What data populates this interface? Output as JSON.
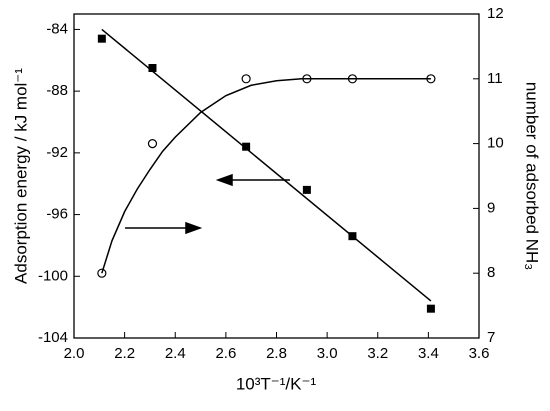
{
  "chart_data": {
    "type": "dual-axis-scatter",
    "xlabel": "10³T⁻¹/K⁻¹",
    "ylabel": "Adsorption energy / kJ mol⁻¹",
    "y2label": "number of adsorbed NH₃",
    "xlim": [
      2.0,
      3.6
    ],
    "xticks": [
      {
        "value": 2.0,
        "label": "2.0"
      },
      {
        "value": 2.2,
        "label": "2.2"
      },
      {
        "value": 2.4,
        "label": "2.4"
      },
      {
        "value": 2.6,
        "label": "2.6"
      },
      {
        "value": 2.8,
        "label": "2.8"
      },
      {
        "value": 3.0,
        "label": "3.0"
      },
      {
        "value": 3.2,
        "label": "3.2"
      },
      {
        "value": 3.4,
        "label": "3.4"
      },
      {
        "value": 3.6,
        "label": "3.6"
      }
    ],
    "ylim": [
      -104,
      -83
    ],
    "yticks": [
      -104,
      -100,
      -96,
      -92,
      -88,
      -84
    ],
    "y2lim": [
      7,
      12
    ],
    "y2ticks": [
      7,
      8,
      9,
      10,
      11,
      12
    ],
    "series": [
      {
        "marker": "square",
        "color": "#000000",
        "x": [
          2.11,
          2.31,
          2.68,
          2.92,
          3.1,
          3.41
        ],
        "values": [
          -84.6,
          -86.5,
          -91.6,
          -94.4,
          -97.4,
          -102.1
        ]
      },
      {
        "marker": "line",
        "color": "#000000",
        "x": [
          2.11,
          3.41
        ],
        "values": [
          -84.0,
          -101.6
        ]
      },
      {
        "marker": "circle",
        "axis": "y2",
        "color": "#000000",
        "x": [
          2.11,
          2.31,
          2.68,
          2.92,
          3.1,
          3.41
        ],
        "values": [
          8.0,
          10.0,
          11.0,
          11.0,
          11.0,
          11.0
        ]
      },
      {
        "marker": "line",
        "axis": "y2",
        "color": "#000000",
        "x": [
          2.11,
          2.15,
          2.2,
          2.25,
          2.3,
          2.35,
          2.4,
          2.5,
          2.6,
          2.7,
          2.8,
          2.9,
          3.0,
          3.41
        ],
        "values": [
          8.0,
          8.5,
          8.95,
          9.3,
          9.6,
          9.88,
          10.1,
          10.48,
          10.74,
          10.9,
          10.97,
          11.0,
          11.0,
          11.0
        ]
      }
    ]
  }
}
